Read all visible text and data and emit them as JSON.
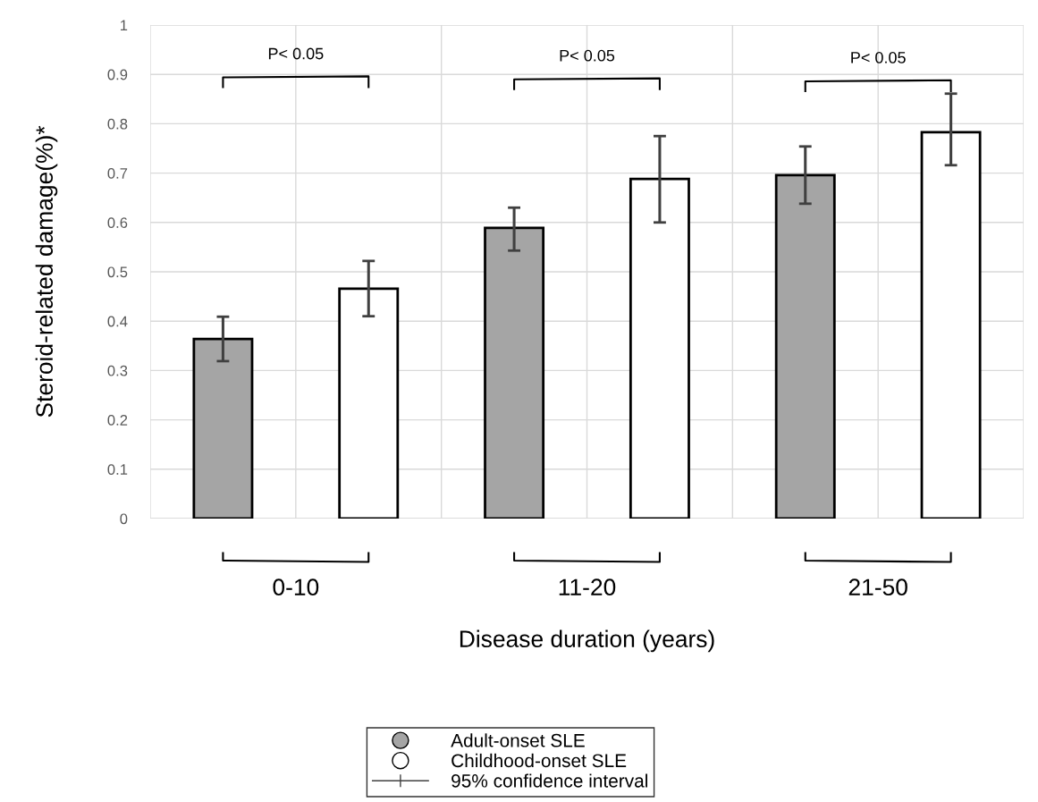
{
  "chart_data": {
    "type": "bar",
    "xlabel": "Disease duration (years)",
    "ylabel": "Steroid-related damage(%)*",
    "categories": [
      "0-10",
      "11-20",
      "21-50"
    ],
    "series": [
      {
        "name": "Adult-onset SLE",
        "color": "#a5a5a5",
        "values": [
          0.364,
          0.589,
          0.696
        ],
        "errors": [
          [
            0.319,
            0.409
          ],
          [
            0.543,
            0.63
          ],
          [
            0.638,
            0.754
          ]
        ]
      },
      {
        "name": "Childhood-onset SLE",
        "color": "#ffffff",
        "values": [
          0.466,
          0.688,
          0.783
        ],
        "errors": [
          [
            0.41,
            0.522
          ],
          [
            0.6,
            0.775
          ],
          [
            0.716,
            0.861
          ]
        ]
      }
    ],
    "ylim": [
      0,
      1
    ],
    "yticks": [
      0,
      0.1,
      0.2,
      0.3,
      0.4,
      0.5,
      0.6,
      0.7,
      0.8,
      0.9,
      1
    ],
    "grid": true,
    "legend": "bottom",
    "annotations": [
      "P< 0.05",
      "P< 0.05",
      "P< 0.05",
      "95% confidence interval"
    ]
  }
}
